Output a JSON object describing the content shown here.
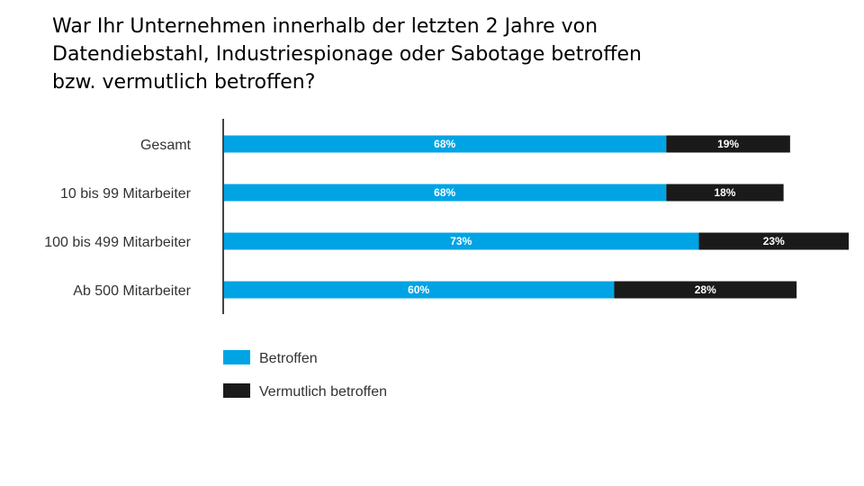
{
  "title": "War Ihr Unternehmen innerhalb der letzten 2 Jahre von\nDatendiebstahl, Industriespionage oder Sabotage betroffen\nbzw. vermutlich betroffen?",
  "colors": {
    "betroffen": "#00A4E4",
    "vermutlich": "#1A1A1A",
    "axis": "#444444"
  },
  "chart_data": {
    "type": "bar",
    "orientation": "horizontal",
    "stacked": true,
    "title": "War Ihr Unternehmen innerhalb der letzten 2 Jahre von Datendiebstahl, Industriespionage oder Sabotage betroffen bzw. vermutlich betroffen?",
    "xlabel": "",
    "ylabel": "",
    "xlim": [
      0,
      100
    ],
    "unit": "%",
    "grid": false,
    "legend_position": "bottom-left",
    "categories": [
      "Gesamt",
      "10 bis 99 Mitarbeiter",
      "100 bis 499 Mitarbeiter",
      "Ab 500 Mitarbeiter"
    ],
    "series": [
      {
        "name": "Betroffen",
        "values": [
          68,
          68,
          73,
          60
        ],
        "labels": [
          "68%",
          "68%",
          "73%",
          "60%"
        ]
      },
      {
        "name": "Vermutlich betroffen",
        "values": [
          19,
          18,
          23,
          28
        ],
        "labels": [
          "19%",
          "18%",
          "23%",
          "28%"
        ]
      }
    ]
  }
}
